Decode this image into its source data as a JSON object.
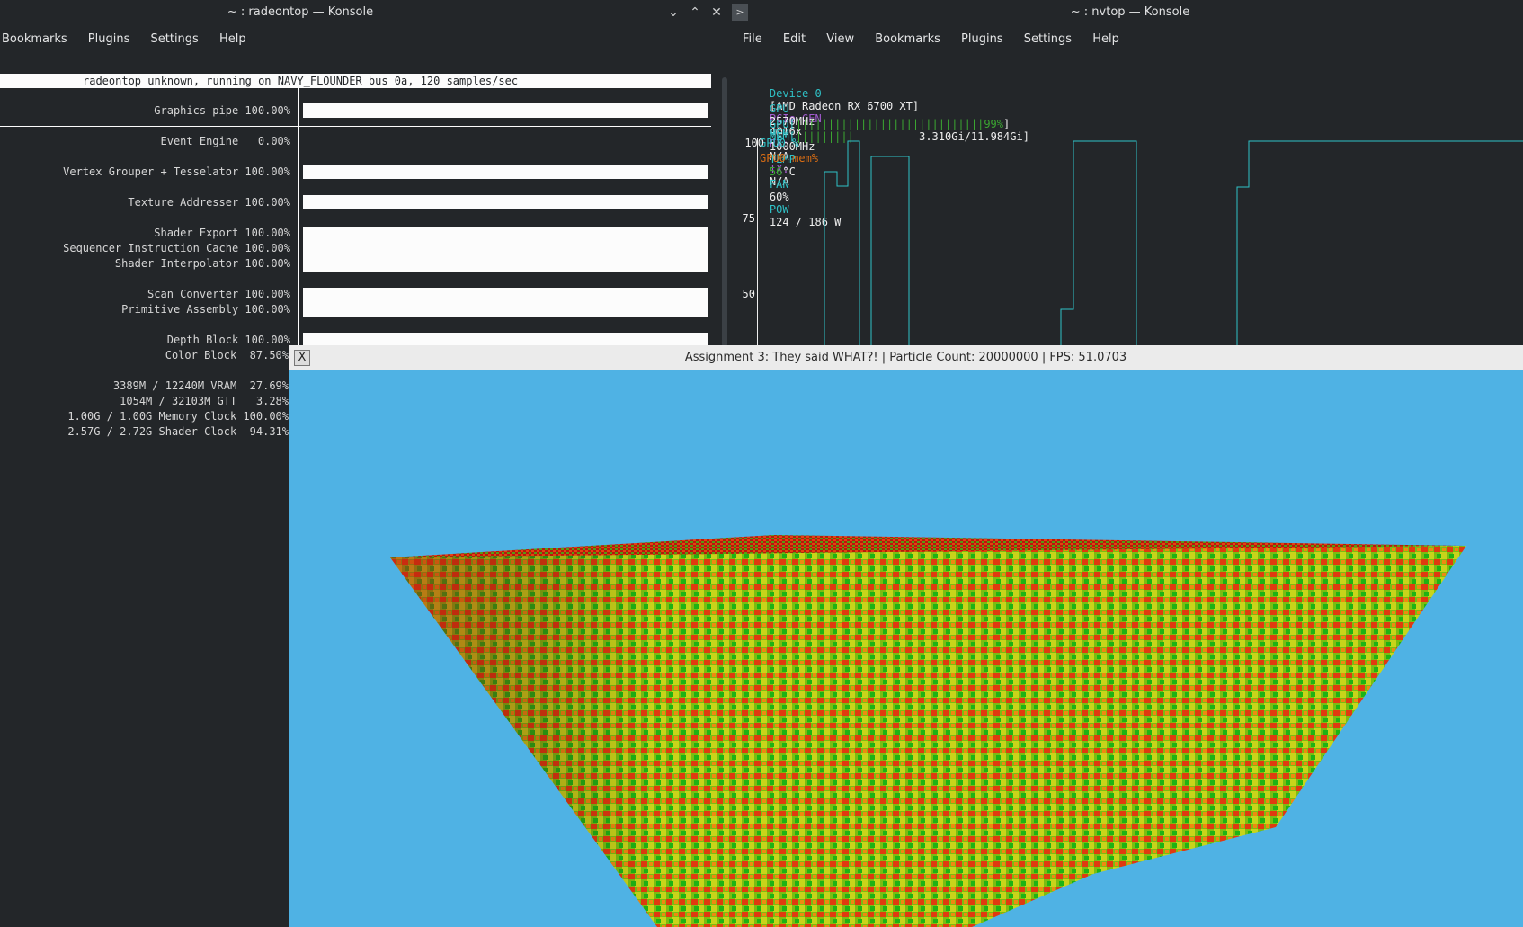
{
  "left_window": {
    "title": "~ : radeontop — Konsole",
    "menu": [
      "Bookmarks",
      "Plugins",
      "Settings",
      "Help"
    ],
    "header": "radeontop unknown, running on NAVY_FLOUNDER bus 0a, 120 samples/sec",
    "rows": [
      {
        "label": "Graphics pipe 100.00%",
        "value": 1.0
      },
      {
        "label": "Event Engine   0.00%",
        "value": 0.0
      },
      {
        "label": "Vertex Grouper + Tesselator 100.00%",
        "value": 1.0
      },
      {
        "label": "Texture Addresser 100.00%",
        "value": 1.0
      },
      {
        "label": "Shader Export 100.00%",
        "value": 1.0
      },
      {
        "label": "Sequencer Instruction Cache 100.00%",
        "value": 1.0
      },
      {
        "label": "Shader Interpolator 100.00%",
        "value": 1.0
      },
      {
        "label": "Scan Converter 100.00%",
        "value": 1.0
      },
      {
        "label": "Primitive Assembly 100.00%",
        "value": 1.0
      },
      {
        "label": "Depth Block 100.00%",
        "value": 1.0
      },
      {
        "label": "Color Block  87.50%",
        "value": 0.875
      }
    ],
    "stats": [
      "3389M / 12240M VRAM  27.69%",
      "1054M / 32103M GTT   3.28%",
      "1.00G / 1.00G Memory Clock 100.00%",
      "2.57G / 2.72G Shader Clock  94.31%"
    ]
  },
  "right_window": {
    "title": "~ : nvtop — Konsole",
    "menu": [
      "File",
      "Edit",
      "View",
      "Bookmarks",
      "Plugins",
      "Settings",
      "Help"
    ],
    "device": {
      "device_label": "Device 0",
      "device_name": "[AMD Radeon RX 6700 XT]",
      "pcie_label": "PCIe GEN",
      "pcie_value": "4@16x",
      "rx_label": "RX:",
      "rx_value": "N/A",
      "tx_label": "TX:",
      "tx_value": "N/A"
    },
    "line2": {
      "gpu_label": "GPU",
      "gpu_clock": "2570MHz",
      "mem_label": "MEM",
      "mem_clock": "1000MHz",
      "temp_label": "TEMP",
      "temp_value": "56",
      "temp_unit": "°C",
      "fan_label": "FAN",
      "fan_value": "60%",
      "pow_label": "POW",
      "pow_value": "124 / 186 W"
    },
    "line3": {
      "gpu_bar_label": "GPU[",
      "gpu_bar": "|||||||||||||||||||||||||||||99%",
      "gpu_bar_end": "]",
      "mem_bar_label": "MEM[",
      "mem_bar": "|||||||||",
      "mem_bar_text": "3.310Gi/11.984Gi]"
    },
    "graph": {
      "y_ticks": [
        "100",
        "75",
        "50"
      ],
      "legend": [
        "GPU0 %",
        "GPU0 mem%"
      ],
      "color": "#2fc1c6"
    }
  },
  "gl_window": {
    "title": "Assignment 3: They said WHAT?! | Particle Count: 20000000 | FPS: 51.0703",
    "close_glyph": "X",
    "background": "#4fb2e4"
  }
}
